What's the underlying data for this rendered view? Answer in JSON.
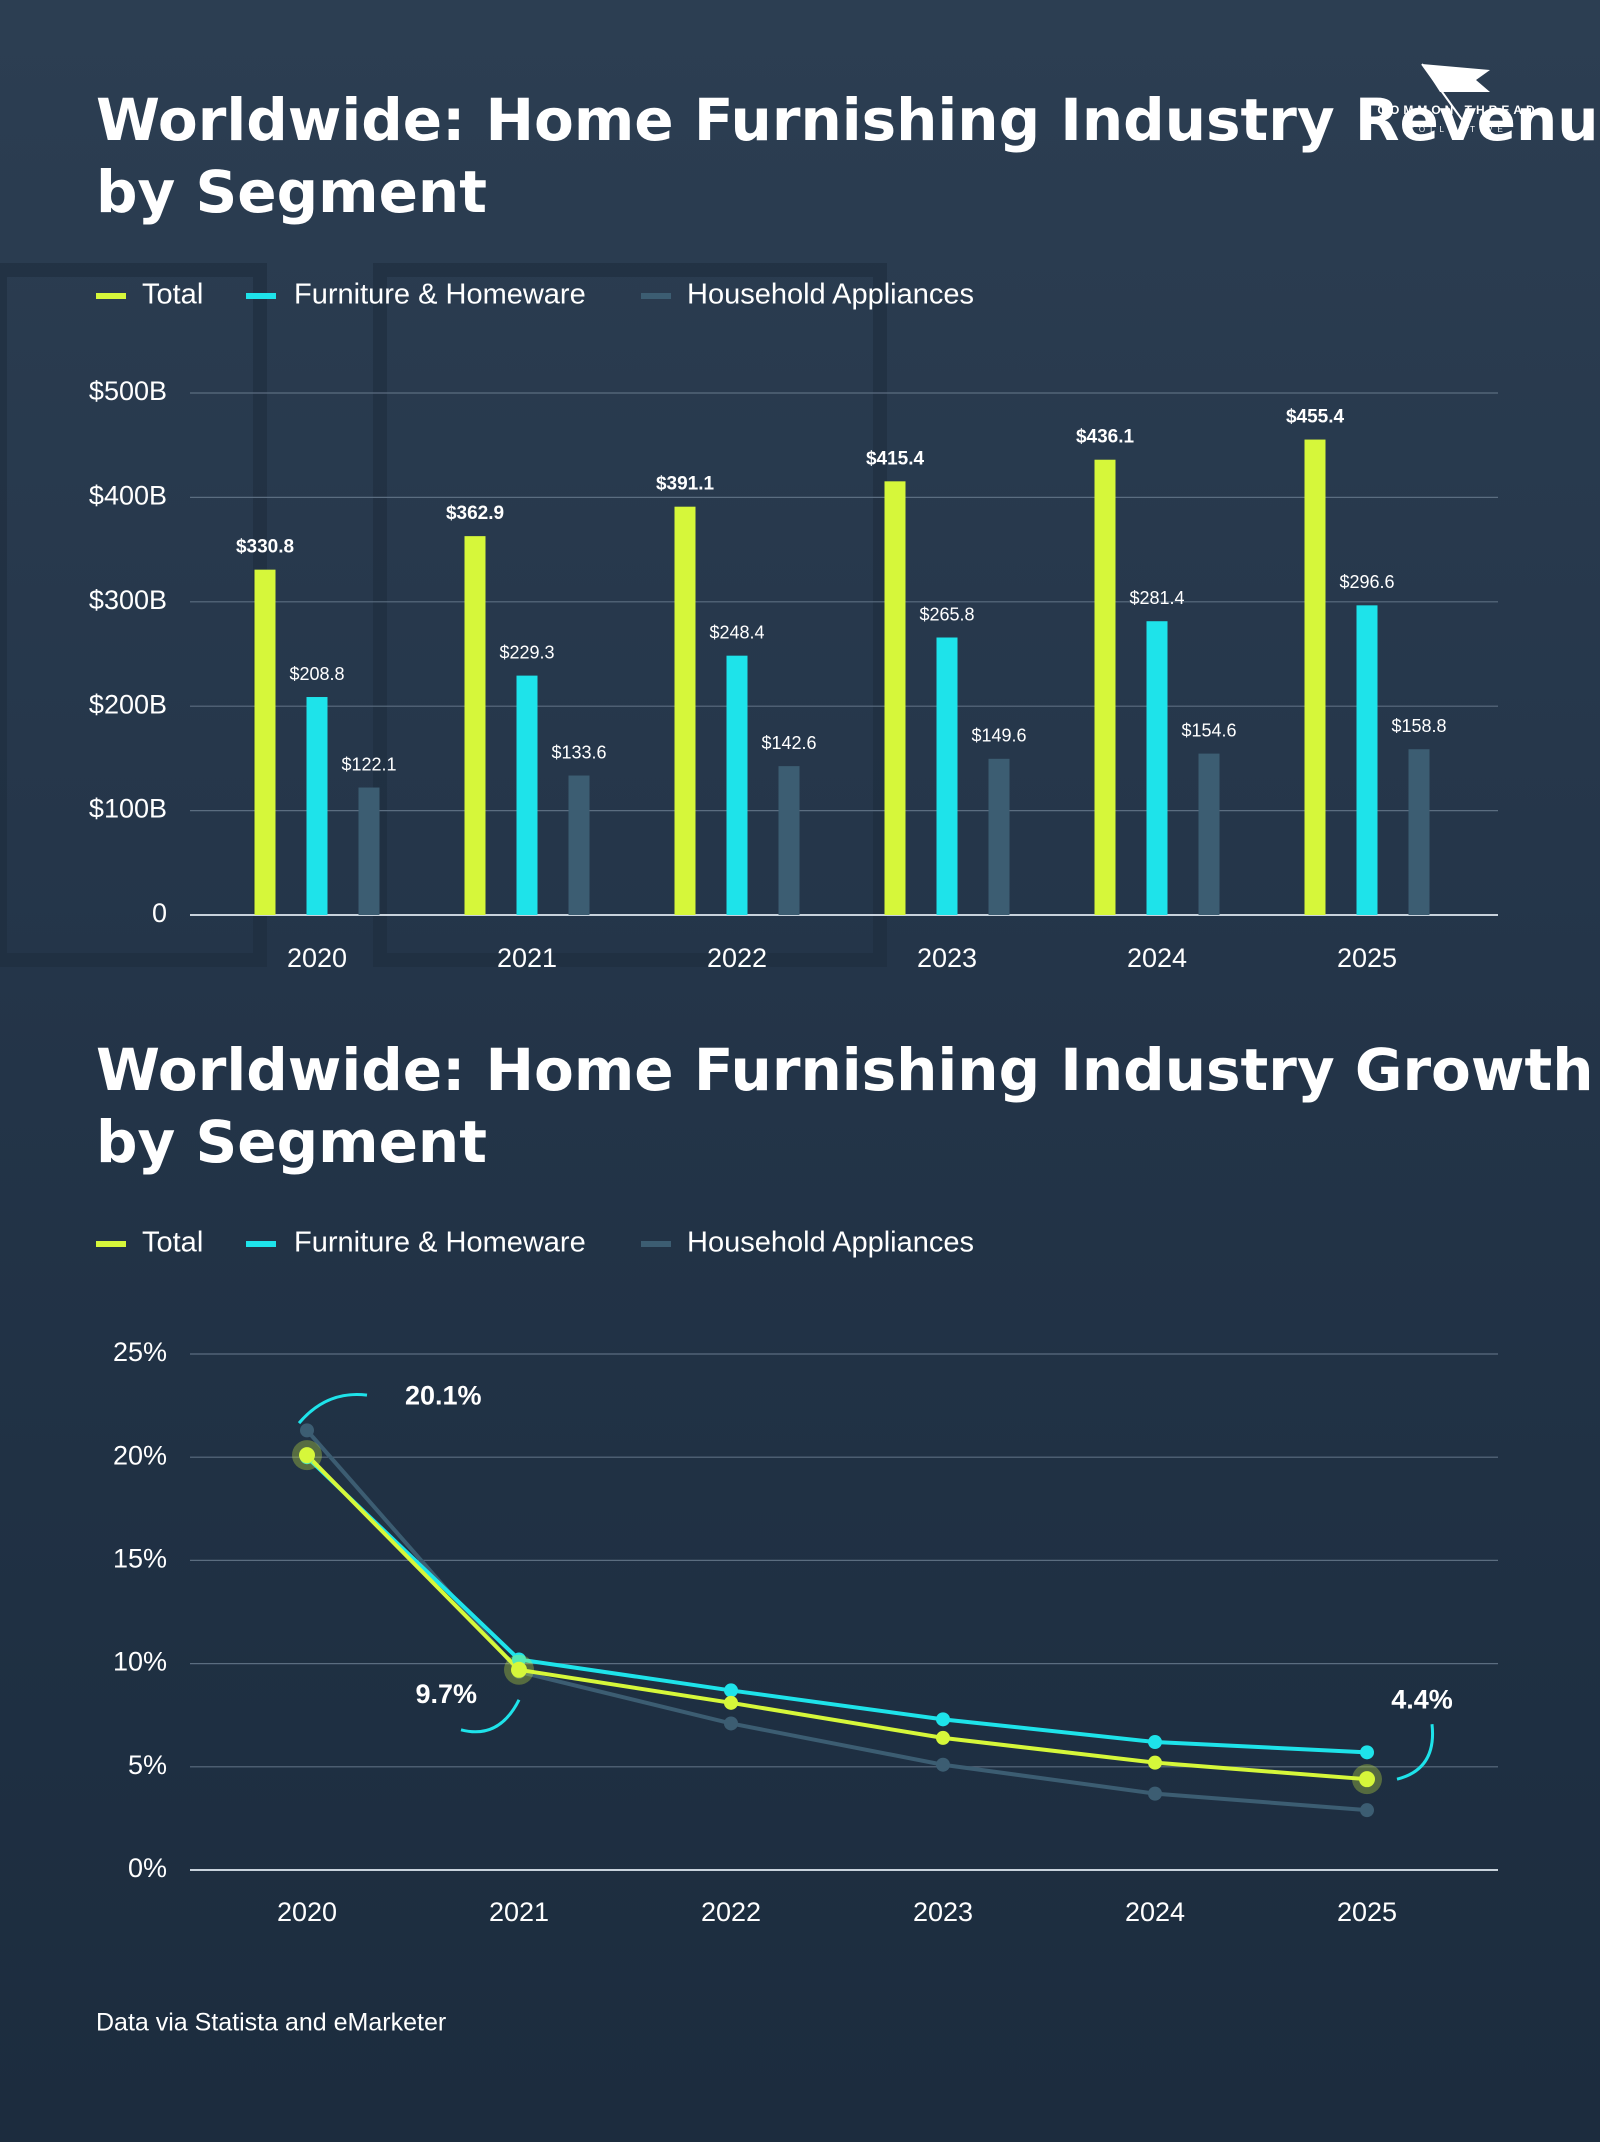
{
  "logo": {
    "name": "COMMON THREAD",
    "sub": "COLLECTIVE"
  },
  "source": "Data via Statista  and eMarketer",
  "chart_data": [
    {
      "type": "bar",
      "title": "Worldwide: Home Furnishing Industry Revenue by Segment",
      "categories": [
        "2020",
        "2021",
        "2022",
        "2023",
        "2024",
        "2025"
      ],
      "series": [
        {
          "name": "Total",
          "color": "#d6f73a",
          "values": [
            330.8,
            362.9,
            391.1,
            415.4,
            436.1,
            455.4
          ],
          "value_labels": [
            "$330.8",
            "$362.9",
            "$391.1",
            "$415.4",
            "$436.1",
            "$455.4"
          ]
        },
        {
          "name": "Furniture & Homeware",
          "color": "#1ee3ea",
          "values": [
            208.8,
            229.3,
            248.4,
            265.8,
            281.4,
            296.6
          ],
          "value_labels": [
            "$208.8",
            "$229.3",
            "$248.4",
            "$265.8",
            "$281.4",
            "$296.6"
          ]
        },
        {
          "name": "Household Appliances",
          "color": "#3c5d72",
          "values": [
            122.1,
            133.6,
            142.6,
            149.6,
            154.6,
            158.8
          ],
          "value_labels": [
            "$122.1",
            "$133.6",
            "$142.6",
            "$149.6",
            "$154.6",
            "$158.8"
          ]
        }
      ],
      "ylim": [
        0,
        500
      ],
      "yticks": [
        0,
        {
          "value": 100,
          "label": "$100B"
        },
        {
          "value": 200,
          "label": "$200B"
        },
        {
          "value": 300,
          "label": "$300B"
        },
        {
          "value": 400,
          "label": "$400B"
        },
        {
          "value": 500,
          "label": "$500B"
        }
      ],
      "grid": true
    },
    {
      "type": "line",
      "title": "Worldwide: Home Furnishing Industry Growth by Segment",
      "categories": [
        "2020",
        "2021",
        "2022",
        "2023",
        "2024",
        "2025"
      ],
      "series": [
        {
          "name": "Total",
          "color": "#d6f73a",
          "values": [
            20.1,
            9.7,
            8.1,
            6.4,
            5.2,
            4.4
          ],
          "value_labels": [
            "20.1%",
            "9.7%",
            null,
            null,
            null,
            "4.4%"
          ]
        },
        {
          "name": "Furniture & Homeware",
          "color": "#1ee3ea",
          "values": [
            20.0,
            10.2,
            8.7,
            7.3,
            6.2,
            5.7
          ]
        },
        {
          "name": "Household Appliances",
          "color": "#3c5d72",
          "values": [
            21.3,
            9.6,
            7.1,
            5.1,
            3.7,
            2.9
          ]
        }
      ],
      "ylim": [
        0,
        25
      ],
      "yticks": [
        {
          "value": 0,
          "label": "0%"
        },
        {
          "value": 5,
          "label": "5%"
        },
        {
          "value": 10,
          "label": "10%"
        },
        {
          "value": 15,
          "label": "15%"
        },
        {
          "value": 20,
          "label": "20%"
        },
        {
          "value": 25,
          "label": "25%"
        }
      ],
      "grid": true
    }
  ]
}
